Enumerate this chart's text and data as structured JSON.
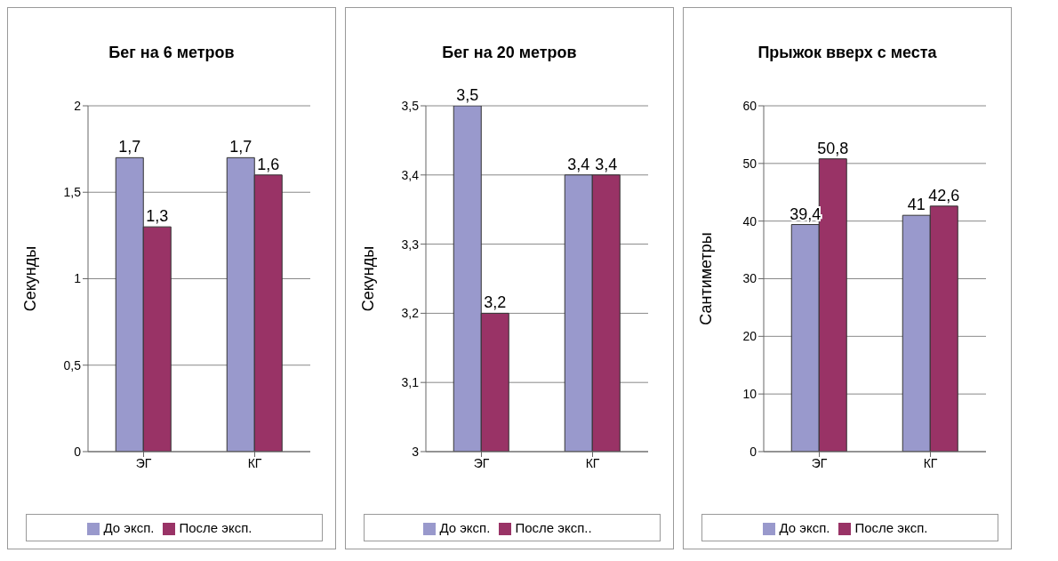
{
  "chart_data": [
    {
      "type": "bar",
      "title": "Бег на 6 метров",
      "ylabel": "Секунды",
      "categories": [
        "ЭГ",
        "КГ"
      ],
      "ylim": [
        0,
        2
      ],
      "yticks": [
        0,
        {
          "value": 0.5,
          "label": "0,5"
        },
        1,
        {
          "value": 1.5,
          "label": "1,5"
        },
        2
      ],
      "grid": "y",
      "legend": "bottom",
      "series": [
        {
          "name": "До эксп.",
          "color": "#9999cc",
          "values": [
            1.7,
            1.7
          ],
          "value_labels": [
            "1,7",
            "1,7"
          ]
        },
        {
          "name": "После эксп.",
          "color": "#993366",
          "values": [
            1.3,
            1.6
          ],
          "value_labels": [
            "1,3",
            "1,6"
          ]
        }
      ]
    },
    {
      "type": "bar",
      "title": "Бег на 20 метров",
      "ylabel": "Секунды",
      "categories": [
        "ЭГ",
        "КГ"
      ],
      "ylim": [
        3,
        3.5
      ],
      "yticks": [
        3,
        {
          "value": 3.1,
          "label": "3,1"
        },
        {
          "value": 3.2,
          "label": "3,2"
        },
        {
          "value": 3.3,
          "label": "3,3"
        },
        {
          "value": 3.4,
          "label": "3,4"
        },
        {
          "value": 3.5,
          "label": "3,5"
        }
      ],
      "grid": "y",
      "legend": "bottom",
      "series": [
        {
          "name": "До эксп.",
          "color": "#9999cc",
          "values": [
            3.5,
            3.4
          ],
          "value_labels": [
            "3,5",
            "3,4"
          ]
        },
        {
          "name": "После эксп..",
          "color": "#993366",
          "values": [
            3.2,
            3.4
          ],
          "value_labels": [
            "3,2",
            "3,4"
          ]
        }
      ]
    },
    {
      "type": "bar",
      "title": "Прыжок вверх с места",
      "ylabel": "Сантиметры",
      "categories": [
        "ЭГ",
        "КГ"
      ],
      "ylim": [
        0,
        60
      ],
      "yticks": [
        0,
        10,
        20,
        30,
        40,
        50,
        60
      ],
      "grid": "y",
      "legend": "bottom",
      "series": [
        {
          "name": "До эксп.",
          "color": "#9999cc",
          "values": [
            39.4,
            41
          ],
          "value_labels": [
            "39,4",
            "41"
          ]
        },
        {
          "name": "После эксп.",
          "color": "#993366",
          "values": [
            50.8,
            42.6
          ],
          "value_labels": [
            "50,8",
            "42,6"
          ]
        }
      ]
    }
  ]
}
